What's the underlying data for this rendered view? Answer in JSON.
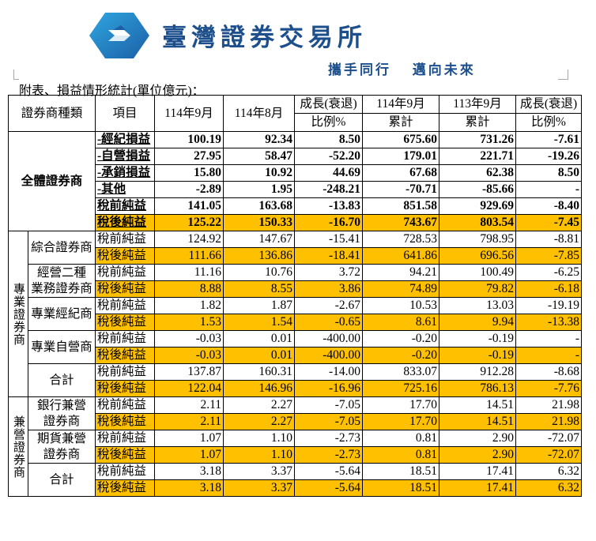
{
  "header": {
    "organization": "臺灣證券交易所",
    "slogan": "攜手同行   邁向未來",
    "logo_color": "#1f7fc4"
  },
  "caption": "附表、損益情形統計(單位億元)：",
  "table": {
    "columns": {
      "type": "證券商種類",
      "item": "項目",
      "c1": "114年9月",
      "c2": "114年8月",
      "c3a": "成長(衰退)",
      "c3b": "比例%",
      "c4a": "114年9月",
      "c4b": "累計",
      "c5a": "113年9月",
      "c5b": "累計",
      "c6a": "成長(衰退)",
      "c6b": "比例%"
    },
    "highlight_color": "#ffc000",
    "groups": [
      {
        "label": "全體證券商",
        "bold": true,
        "subgroups": [
          {
            "label": "",
            "rows": [
              {
                "item": "-經紀損益",
                "values": [
                  "100.19",
                  "92.34",
                  "8.50",
                  "675.60",
                  "731.26",
                  "-7.61"
                ]
              },
              {
                "item": "-自營損益",
                "values": [
                  "27.95",
                  "58.47",
                  "-52.20",
                  "179.01",
                  "221.71",
                  "-19.26"
                ]
              },
              {
                "item": "-承銷損益",
                "values": [
                  "15.80",
                  "10.92",
                  "44.69",
                  "67.68",
                  "62.38",
                  "8.50"
                ]
              },
              {
                "item": "-其他",
                "values": [
                  "-2.89",
                  "1.95",
                  "-248.21",
                  "-70.71",
                  "-85.66",
                  "-"
                ]
              },
              {
                "item": "稅前純益",
                "values": [
                  "141.05",
                  "163.68",
                  "-13.83",
                  "851.58",
                  "929.69",
                  "-8.40"
                ]
              },
              {
                "item": "稅後純益",
                "highlight": true,
                "values": [
                  "125.22",
                  "150.33",
                  "-16.70",
                  "743.67",
                  "803.54",
                  "-7.45"
                ]
              }
            ]
          }
        ]
      },
      {
        "label": "專業證券商",
        "subgroups": [
          {
            "label": "綜合證券商",
            "rows": [
              {
                "item": "稅前純益",
                "values": [
                  "124.92",
                  "147.67",
                  "-15.41",
                  "728.53",
                  "798.95",
                  "-8.81"
                ]
              },
              {
                "item": "稅後純益",
                "highlight": true,
                "values": [
                  "111.66",
                  "136.86",
                  "-18.41",
                  "641.86",
                  "696.56",
                  "-7.85"
                ]
              }
            ]
          },
          {
            "label": "經營二種業務證券商",
            "label_lines": [
              "經營二種",
              "業務證券商"
            ],
            "rows": [
              {
                "item": "稅前純益",
                "values": [
                  "11.16",
                  "10.76",
                  "3.72",
                  "94.21",
                  "100.49",
                  "-6.25"
                ]
              },
              {
                "item": "稅後純益",
                "highlight": true,
                "values": [
                  "8.88",
                  "8.55",
                  "3.86",
                  "74.89",
                  "79.82",
                  "-6.18"
                ]
              }
            ]
          },
          {
            "label": "專業經紀商",
            "rows": [
              {
                "item": "稅前純益",
                "values": [
                  "1.82",
                  "1.87",
                  "-2.67",
                  "10.53",
                  "13.03",
                  "-19.19"
                ]
              },
              {
                "item": "稅後純益",
                "highlight": true,
                "values": [
                  "1.53",
                  "1.54",
                  "-0.65",
                  "8.61",
                  "9.94",
                  "-13.38"
                ]
              }
            ]
          },
          {
            "label": "專業自營商",
            "rows": [
              {
                "item": "稅前純益",
                "values": [
                  "-0.03",
                  "0.01",
                  "-400.00",
                  "-0.20",
                  "-0.19",
                  "-"
                ]
              },
              {
                "item": "稅後純益",
                "highlight": true,
                "values": [
                  "-0.03",
                  "0.01",
                  "-400.00",
                  "-0.20",
                  "-0.19",
                  "-"
                ]
              }
            ]
          },
          {
            "label": "合計",
            "rows": [
              {
                "item": "稅前純益",
                "values": [
                  "137.87",
                  "160.31",
                  "-14.00",
                  "833.07",
                  "912.28",
                  "-8.68"
                ]
              },
              {
                "item": "稅後純益",
                "highlight": true,
                "values": [
                  "122.04",
                  "146.96",
                  "-16.96",
                  "725.16",
                  "786.13",
                  "-7.76"
                ]
              }
            ]
          }
        ]
      },
      {
        "label": "兼營證券商",
        "subgroups": [
          {
            "label": "銀行兼營證券商",
            "label_lines": [
              "銀行兼營",
              "證券商"
            ],
            "rows": [
              {
                "item": "稅前純益",
                "values": [
                  "2.11",
                  "2.27",
                  "-7.05",
                  "17.70",
                  "14.51",
                  "21.98"
                ]
              },
              {
                "item": "稅後純益",
                "highlight": true,
                "values": [
                  "2.11",
                  "2.27",
                  "-7.05",
                  "17.70",
                  "14.51",
                  "21.98"
                ]
              }
            ]
          },
          {
            "label": "期貨兼營證券商",
            "label_lines": [
              "期貨兼營",
              "證券商"
            ],
            "rows": [
              {
                "item": "稅前純益",
                "values": [
                  "1.07",
                  "1.10",
                  "-2.73",
                  "0.81",
                  "2.90",
                  "-72.07"
                ]
              },
              {
                "item": "稅後純益",
                "highlight": true,
                "values": [
                  "1.07",
                  "1.10",
                  "-2.73",
                  "0.81",
                  "2.90",
                  "-72.07"
                ]
              }
            ]
          },
          {
            "label": "合計",
            "rows": [
              {
                "item": "稅前純益",
                "values": [
                  "3.18",
                  "3.37",
                  "-5.64",
                  "18.51",
                  "17.41",
                  "6.32"
                ]
              },
              {
                "item": "稅後純益",
                "highlight": true,
                "values": [
                  "3.18",
                  "3.37",
                  "-5.64",
                  "18.51",
                  "17.41",
                  "6.32"
                ]
              }
            ]
          }
        ]
      }
    ]
  }
}
